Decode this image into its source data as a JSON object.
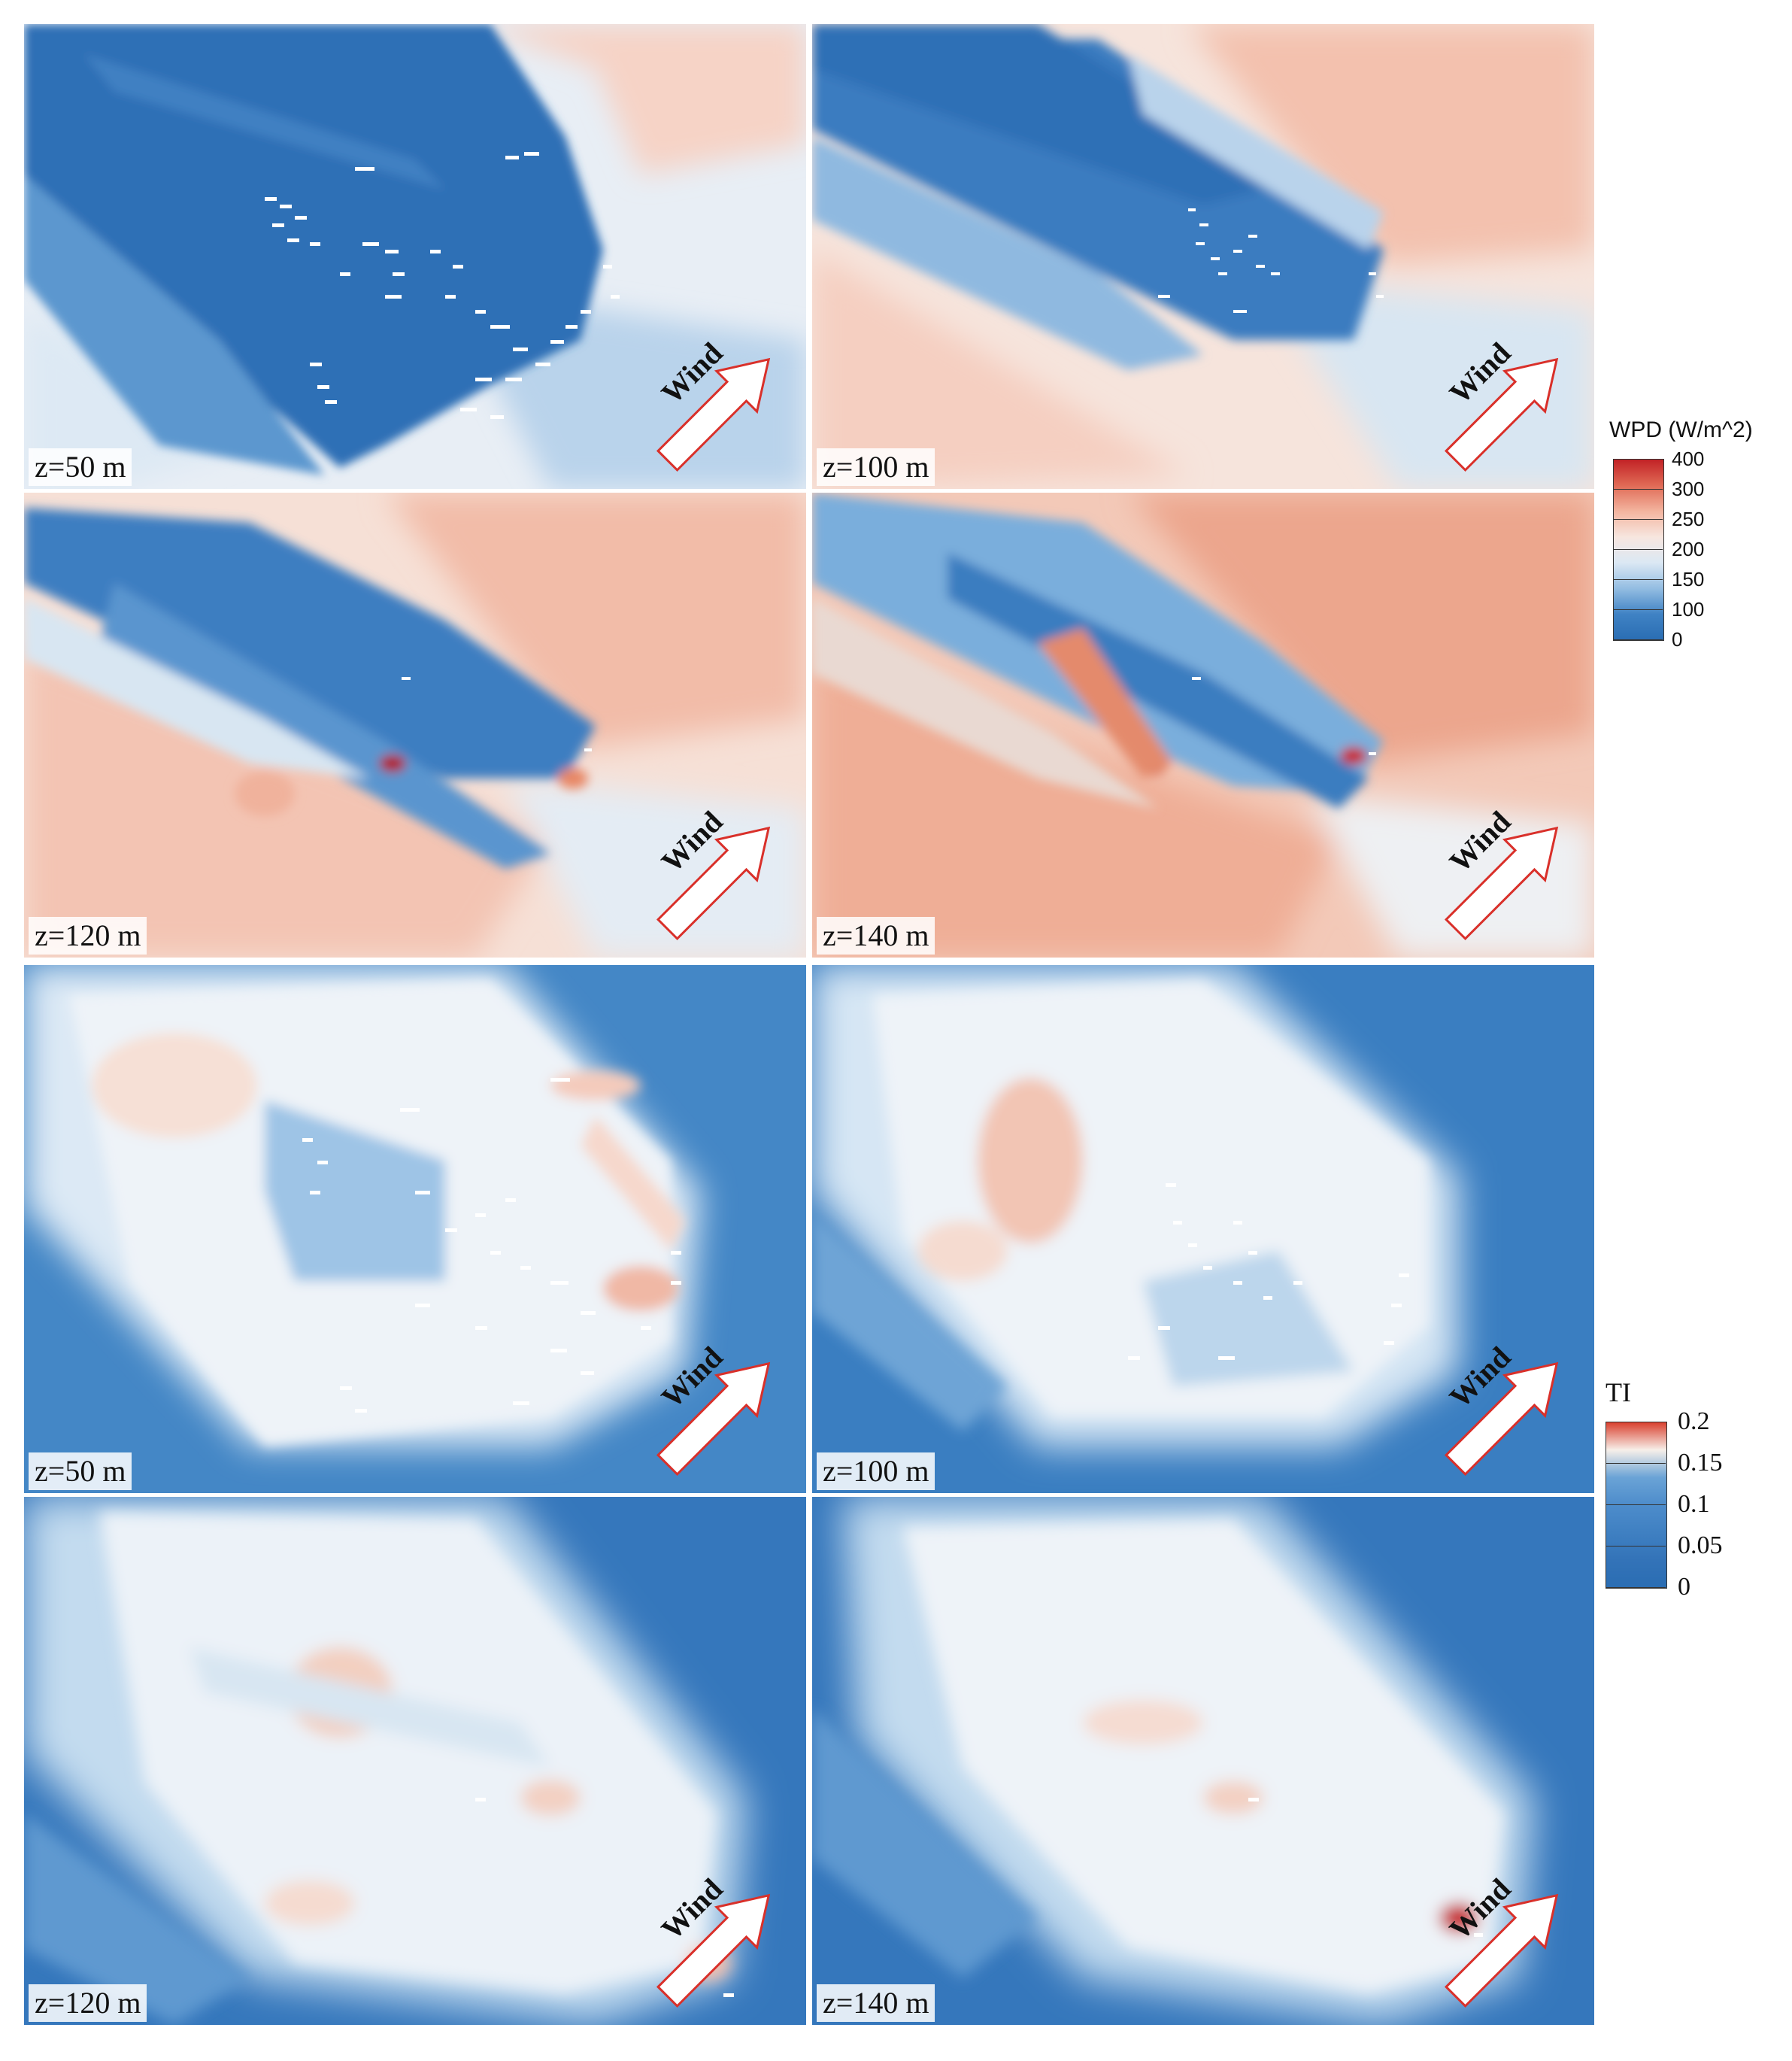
{
  "colors": {
    "deep_blue": "#2a6db3",
    "mid_blue": "#5c9bd3",
    "light_blue": "#bcd7ee",
    "near_white": "#f4f1ef",
    "light_red": "#f6c9b6",
    "mid_red": "#ec9b82",
    "deep_red": "#c22226",
    "arrow_outline": "#d9302a"
  },
  "wind_label": "Wind",
  "wpd_panels": [
    {
      "height": "z=50 m",
      "wind_label": "Wind"
    },
    {
      "height": "z=100 m",
      "wind_label": "Wind"
    },
    {
      "height": "z=120 m",
      "wind_label": "Wind"
    },
    {
      "height": "z=140 m",
      "wind_label": "Wind"
    }
  ],
  "ti_panels": [
    {
      "height": "z=50 m",
      "wind_label": "Wind"
    },
    {
      "height": "z=100 m",
      "wind_label": "Wind"
    },
    {
      "height": "z=120 m",
      "wind_label": "Wind"
    },
    {
      "height": "z=140 m",
      "wind_label": "Wind"
    }
  ],
  "wpd_colorbar": {
    "title": "WPD (W/m^2)",
    "ticks": [
      "400",
      "300",
      "250",
      "200",
      "150",
      "100",
      "0"
    ],
    "colors": [
      "#c22226",
      "#e06a55",
      "#f3b49f",
      "#f7e6df",
      "#dbe8f4",
      "#93bde2",
      "#3f82c4",
      "#2a6db3"
    ]
  },
  "ti_colorbar": {
    "title": "TI",
    "ticks": [
      "0.2",
      "0.15",
      "0.1",
      "0.05",
      "0"
    ],
    "colors": [
      "#d9402e",
      "#f7efe9",
      "#6aa3d6",
      "#4d8ccb",
      "#3f80c2",
      "#3373b8",
      "#2a6db3"
    ]
  },
  "chart_data": [
    {
      "type": "heatmap",
      "title": "",
      "variable": "WPD (W/m^2)",
      "height": "z=50 m",
      "range": [
        0,
        400
      ]
    },
    {
      "type": "heatmap",
      "title": "",
      "variable": "WPD (W/m^2)",
      "height": "z=100 m",
      "range": [
        0,
        400
      ]
    },
    {
      "type": "heatmap",
      "title": "",
      "variable": "WPD (W/m^2)",
      "height": "z=120 m",
      "range": [
        0,
        400
      ]
    },
    {
      "type": "heatmap",
      "title": "",
      "variable": "WPD (W/m^2)",
      "height": "z=140 m",
      "range": [
        0,
        400
      ]
    },
    {
      "type": "heatmap",
      "title": "",
      "variable": "TI",
      "height": "z=50 m",
      "range": [
        0,
        0.2
      ]
    },
    {
      "type": "heatmap",
      "title": "",
      "variable": "TI",
      "height": "z=100 m",
      "range": [
        0,
        0.2
      ]
    },
    {
      "type": "heatmap",
      "title": "",
      "variable": "TI",
      "height": "z=120 m",
      "range": [
        0,
        0.2
      ]
    },
    {
      "type": "heatmap",
      "title": "",
      "variable": "TI",
      "height": "z=140 m",
      "range": [
        0,
        0.2
      ]
    }
  ]
}
